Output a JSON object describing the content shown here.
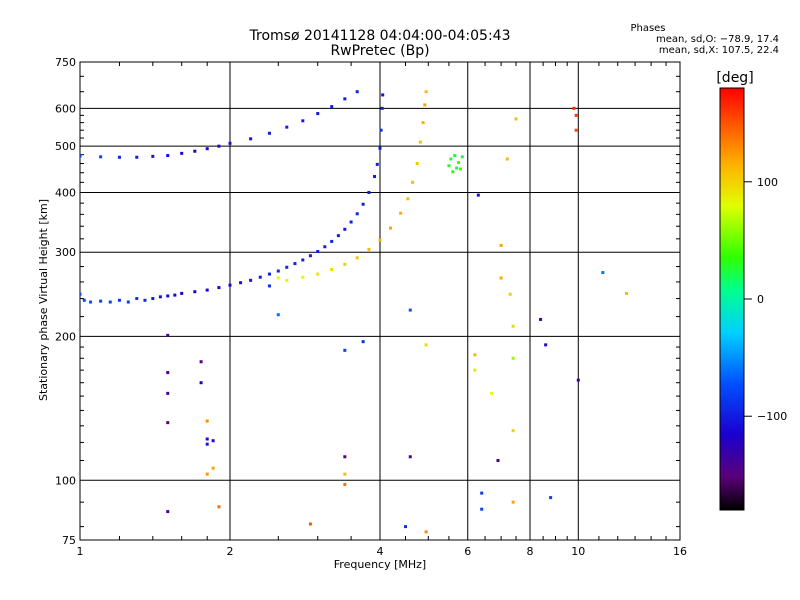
{
  "title": {
    "line1": "Tromsø 20141128 04:04:00-04:05:43",
    "line2": "RwPretec (Bp)"
  },
  "stats": {
    "header": "Phases",
    "line_o": "mean, sd,O: −78.9, 17.4",
    "line_x": "mean, sd,X: 107.5, 22.4"
  },
  "colorbar": {
    "unit": "[deg]",
    "range": [
      -180,
      180
    ],
    "ticks": [
      {
        "label": "100",
        "value": 100
      },
      {
        "label": "0",
        "value": 0
      },
      {
        "label": "−100",
        "value": -100
      }
    ]
  },
  "chart_data": {
    "type": "scatter",
    "xlabel": "Frequency [MHz]",
    "ylabel": "Stationary phase Virtual Height [km]",
    "x_scale": "log",
    "y_scale": "log",
    "xlim": [
      1,
      16
    ],
    "ylim": [
      75,
      750
    ],
    "grid": true,
    "x_ticks": [
      {
        "label": "1",
        "value": 1
      },
      {
        "label": "2",
        "value": 2
      },
      {
        "label": "4",
        "value": 4
      },
      {
        "label": "6",
        "value": 6
      },
      {
        "label": "8",
        "value": 8
      },
      {
        "label": "10",
        "value": 10
      },
      {
        "label": "16",
        "value": 16
      }
    ],
    "y_ticks": [
      {
        "label": "750",
        "value": 750
      },
      {
        "label": "600",
        "value": 600
      },
      {
        "label": "500",
        "value": 500
      },
      {
        "label": "400",
        "value": 400
      },
      {
        "label": "300",
        "value": 300
      },
      {
        "label": "200",
        "value": 200
      },
      {
        "label": "100",
        "value": 100
      },
      {
        "label": "75",
        "value": 75
      }
    ],
    "color_by": "phase [deg]",
    "series": [
      {
        "points": [
          [
            1.0,
            245,
            -70
          ],
          [
            1.02,
            238,
            -75
          ],
          [
            1.05,
            236,
            -72
          ],
          [
            1.1,
            237,
            -78
          ],
          [
            1.15,
            236,
            -80
          ],
          [
            1.2,
            238,
            -85
          ],
          [
            1.25,
            236,
            -82
          ],
          [
            1.3,
            240,
            -90
          ],
          [
            1.35,
            238,
            -95
          ],
          [
            1.4,
            240,
            -100
          ],
          [
            1.45,
            242,
            -105
          ],
          [
            1.5,
            243,
            -110
          ],
          [
            1.55,
            244,
            -112
          ],
          [
            1.6,
            246,
            -115
          ],
          [
            1.7,
            248,
            -118
          ],
          [
            1.8,
            250,
            -115
          ],
          [
            1.9,
            253,
            -112
          ],
          [
            2.0,
            256,
            -110
          ],
          [
            2.1,
            259,
            -108
          ],
          [
            2.2,
            262,
            -105
          ],
          [
            2.3,
            266,
            -100
          ],
          [
            2.4,
            270,
            -98
          ],
          [
            2.5,
            274,
            -95
          ],
          [
            2.6,
            279,
            -92
          ],
          [
            2.7,
            284,
            -95
          ],
          [
            2.8,
            289,
            -98
          ],
          [
            2.9,
            295,
            -100
          ],
          [
            3.0,
            301,
            -100
          ],
          [
            3.1,
            308,
            -98
          ],
          [
            3.2,
            316,
            -95
          ],
          [
            3.3,
            325,
            -97
          ],
          [
            3.4,
            335,
            -100
          ],
          [
            3.5,
            347,
            -98
          ],
          [
            3.6,
            361,
            -95
          ],
          [
            3.7,
            378,
            -100
          ],
          [
            3.8,
            400,
            -102
          ],
          [
            3.9,
            432,
            -100
          ],
          [
            3.95,
            458,
            -98
          ],
          [
            4.0,
            495,
            -100
          ],
          [
            4.02,
            540,
            -95
          ],
          [
            4.04,
            600,
            -100
          ],
          [
            4.05,
            640,
            -105
          ]
        ]
      },
      {
        "points": [
          [
            1.0,
            477,
            -75
          ],
          [
            1.1,
            475,
            -80
          ],
          [
            1.2,
            474,
            -95
          ],
          [
            1.3,
            474,
            -100
          ],
          [
            1.4,
            476,
            -105
          ],
          [
            1.5,
            478,
            -110
          ],
          [
            1.6,
            483,
            -112
          ],
          [
            1.7,
            488,
            -115
          ],
          [
            1.8,
            494,
            -112
          ],
          [
            1.9,
            500,
            -110
          ],
          [
            2.0,
            507,
            -108
          ],
          [
            2.2,
            518,
            -105
          ],
          [
            2.4,
            532,
            -100
          ],
          [
            2.6,
            548,
            -98
          ],
          [
            2.8,
            565,
            -102
          ],
          [
            3.0,
            585,
            -105
          ],
          [
            3.2,
            605,
            -100
          ],
          [
            3.4,
            628,
            -98
          ],
          [
            3.6,
            650,
            -95
          ]
        ]
      },
      {
        "points": [
          [
            2.6,
            262,
            75
          ],
          [
            2.8,
            266,
            80
          ],
          [
            3.0,
            270,
            90
          ],
          [
            3.2,
            276,
            95
          ],
          [
            3.4,
            283,
            100
          ],
          [
            3.6,
            292,
            105
          ],
          [
            3.8,
            304,
            110
          ],
          [
            4.0,
            318,
            115
          ],
          [
            4.2,
            337,
            120
          ],
          [
            4.4,
            362,
            115
          ],
          [
            4.55,
            388,
            110
          ],
          [
            4.65,
            420,
            108
          ],
          [
            4.75,
            460,
            105
          ],
          [
            4.82,
            510,
            110
          ],
          [
            4.88,
            560,
            115
          ],
          [
            4.92,
            610,
            120
          ],
          [
            4.95,
            650,
            112
          ]
        ]
      },
      {
        "points": [
          [
            5.5,
            455,
            30
          ],
          [
            5.55,
            470,
            25
          ],
          [
            5.6,
            442,
            35
          ],
          [
            5.65,
            478,
            28
          ],
          [
            5.7,
            450,
            20
          ],
          [
            5.75,
            462,
            32
          ],
          [
            5.8,
            448,
            38
          ],
          [
            5.85,
            475,
            22
          ]
        ]
      },
      {
        "points": [
          [
            1.5,
            201,
            -140
          ],
          [
            1.5,
            168,
            -140
          ],
          [
            1.5,
            152,
            -145
          ],
          [
            1.5,
            132,
            -150
          ],
          [
            1.5,
            86,
            -140
          ],
          [
            1.75,
            177,
            -150
          ],
          [
            1.75,
            160,
            -120
          ],
          [
            1.8,
            122,
            -110
          ],
          [
            1.8,
            119,
            -108
          ],
          [
            1.85,
            121,
            -112
          ],
          [
            1.9,
            88,
            140
          ],
          [
            1.8,
            133,
            130
          ],
          [
            1.85,
            106,
            120
          ],
          [
            1.8,
            103,
            125
          ],
          [
            2.4,
            255,
            -90
          ],
          [
            2.5,
            265,
            80
          ],
          [
            2.5,
            222,
            -60
          ],
          [
            2.9,
            81,
            150
          ],
          [
            3.4,
            187,
            -80
          ],
          [
            3.4,
            112,
            -150
          ],
          [
            3.4,
            103,
            110
          ],
          [
            3.4,
            98,
            140
          ],
          [
            3.7,
            195,
            -90
          ],
          [
            4.5,
            80,
            -90
          ],
          [
            4.6,
            227,
            -70
          ],
          [
            4.6,
            112,
            -140
          ],
          [
            4.95,
            192,
            95
          ],
          [
            4.95,
            78,
            130
          ],
          [
            6.2,
            183,
            115
          ],
          [
            6.2,
            170,
            90
          ],
          [
            6.3,
            395,
            -110
          ],
          [
            6.4,
            94,
            -85
          ],
          [
            6.4,
            87,
            -80
          ],
          [
            6.7,
            152,
            80
          ],
          [
            6.9,
            110,
            -140
          ],
          [
            7.0,
            310,
            120
          ],
          [
            7.0,
            265,
            120
          ],
          [
            7.2,
            470,
            110
          ],
          [
            7.3,
            245,
            100
          ],
          [
            7.4,
            210,
            95
          ],
          [
            7.4,
            180,
            60
          ],
          [
            7.4,
            127,
            100
          ],
          [
            7.4,
            90,
            120
          ],
          [
            7.5,
            570,
            110
          ],
          [
            8.4,
            217,
            -140
          ],
          [
            8.6,
            192,
            -110
          ],
          [
            8.8,
            92,
            -80
          ],
          [
            9.8,
            600,
            165
          ],
          [
            9.9,
            580,
            160
          ],
          [
            9.9,
            540,
            155
          ],
          [
            10.0,
            162,
            -130
          ],
          [
            11.2,
            272,
            -60
          ],
          [
            12.5,
            246,
            110
          ]
        ]
      }
    ]
  }
}
